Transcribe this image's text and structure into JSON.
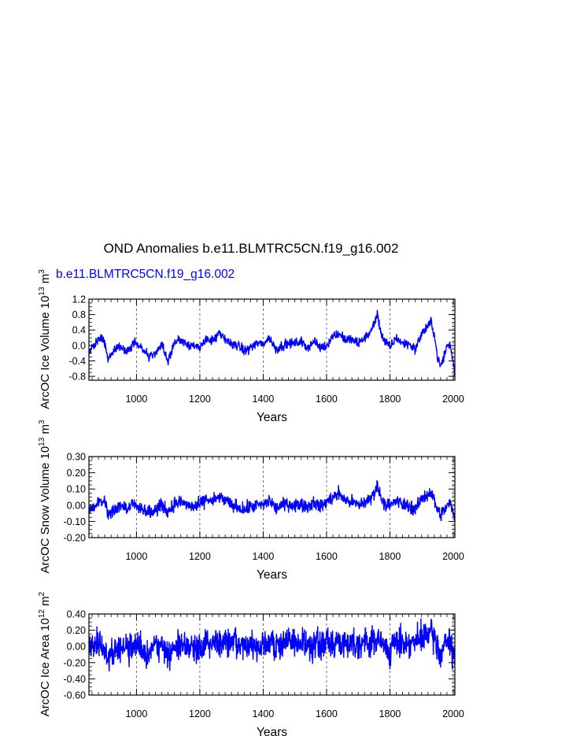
{
  "title": "OND Anomalies b.e11.BLMTRC5CN.f19_g16.002",
  "subtitle": "b.e11.BLMTRC5CN.f19_g16.002",
  "colors": {
    "series": "#0000ff",
    "axis": "#000000",
    "grid": "#555555",
    "background": "#ffffff"
  },
  "chart_data": [
    {
      "type": "line",
      "title": "",
      "ylabel": "ArcOC Ice Volume 10¹³ m³",
      "ylabel_parts": {
        "main": "ArcOC Ice Volume 10",
        "exp1": "13",
        "unit": " m",
        "exp2": "3"
      },
      "xlabel": "Years",
      "xlim": [
        850,
        2005
      ],
      "ylim": [
        -0.9,
        1.2
      ],
      "xticks": [
        1000,
        1200,
        1400,
        1600,
        1800,
        2000
      ],
      "xtick_labels": [
        "1000",
        "1200",
        "1400",
        "1600",
        "1800",
        "2000"
      ],
      "yticks": [
        -0.8,
        -0.4,
        0.0,
        0.4,
        0.8,
        1.2
      ],
      "ytick_labels": [
        "-0.8",
        "-0.4",
        "0.0",
        "0.4",
        "0.8",
        "1.2"
      ],
      "grid": "vertical dashed at major x ticks",
      "series": [
        {
          "name": "b.e11.BLMTRC5CN.f19_g16.002",
          "color": "#0000ff",
          "noise": 0.09,
          "x": [
            850,
            870,
            890,
            900,
            910,
            930,
            950,
            970,
            990,
            1000,
            1020,
            1040,
            1060,
            1080,
            1100,
            1120,
            1140,
            1160,
            1180,
            1200,
            1220,
            1240,
            1260,
            1280,
            1300,
            1320,
            1340,
            1360,
            1380,
            1400,
            1420,
            1440,
            1460,
            1480,
            1500,
            1520,
            1540,
            1560,
            1580,
            1600,
            1620,
            1640,
            1660,
            1680,
            1700,
            1720,
            1740,
            1760,
            1770,
            1780,
            1800,
            1820,
            1840,
            1860,
            1880,
            1900,
            1920,
            1930,
            1940,
            1950,
            1960,
            1970,
            1980,
            1990,
            2000,
            2005
          ],
          "y": [
            -0.2,
            0.05,
            0.2,
            0.1,
            -0.4,
            -0.1,
            0.0,
            -0.2,
            0.05,
            0.1,
            -0.1,
            -0.3,
            -0.2,
            0.0,
            -0.4,
            0.1,
            0.15,
            0.05,
            0.0,
            -0.1,
            0.2,
            0.1,
            0.3,
            0.15,
            0.05,
            0.0,
            -0.15,
            -0.05,
            0.05,
            0.05,
            0.2,
            -0.1,
            0.0,
            0.05,
            0.05,
            0.1,
            -0.05,
            0.1,
            -0.05,
            0.0,
            0.25,
            0.3,
            0.15,
            0.15,
            0.05,
            0.2,
            0.35,
            0.8,
            0.4,
            0.15,
            -0.05,
            0.2,
            0.05,
            0.05,
            -0.1,
            0.3,
            0.5,
            0.6,
            0.3,
            -0.3,
            -0.55,
            -0.3,
            0.0,
            0.0,
            -0.4,
            -0.8
          ]
        }
      ]
    },
    {
      "type": "line",
      "title": "",
      "ylabel": "ArcOC Snow Volume 10¹³ m³",
      "ylabel_parts": {
        "main": "ArcOC Snow Volume 10",
        "exp1": "13",
        "unit": " m",
        "exp2": "3"
      },
      "xlabel": "Years",
      "xlim": [
        850,
        2005
      ],
      "ylim": [
        -0.2,
        0.3
      ],
      "xticks": [
        1000,
        1200,
        1400,
        1600,
        1800,
        2000
      ],
      "xtick_labels": [
        "1000",
        "1200",
        "1400",
        "1600",
        "1800",
        "2000"
      ],
      "yticks": [
        -0.2,
        -0.1,
        0.0,
        0.1,
        0.2,
        0.3
      ],
      "ytick_labels": [
        "-0.20",
        "-0.10",
        "0.00",
        "0.10",
        "0.20",
        "0.30"
      ],
      "grid": "vertical dashed at major x ticks",
      "series": [
        {
          "name": "b.e11.BLMTRC5CN.f19_g16.002",
          "color": "#0000ff",
          "noise": 0.03,
          "x": [
            850,
            870,
            890,
            900,
            910,
            930,
            950,
            970,
            990,
            1000,
            1020,
            1040,
            1060,
            1080,
            1100,
            1120,
            1140,
            1160,
            1180,
            1200,
            1220,
            1240,
            1260,
            1280,
            1300,
            1320,
            1340,
            1360,
            1380,
            1400,
            1420,
            1440,
            1460,
            1480,
            1500,
            1520,
            1540,
            1560,
            1580,
            1600,
            1620,
            1640,
            1660,
            1680,
            1700,
            1720,
            1740,
            1760,
            1770,
            1780,
            1800,
            1820,
            1840,
            1860,
            1880,
            1900,
            1920,
            1930,
            1940,
            1950,
            1960,
            1970,
            1980,
            1990,
            2000,
            2005
          ],
          "y": [
            -0.03,
            0.0,
            0.03,
            0.02,
            -0.05,
            -0.03,
            0.0,
            -0.02,
            0.01,
            0.0,
            -0.02,
            -0.04,
            -0.03,
            0.0,
            -0.04,
            0.01,
            0.02,
            0.0,
            -0.01,
            0.0,
            0.04,
            0.02,
            0.05,
            0.03,
            0.0,
            -0.01,
            -0.03,
            -0.01,
            0.0,
            0.0,
            0.03,
            -0.02,
            0.0,
            0.01,
            0.0,
            0.01,
            -0.01,
            0.02,
            -0.01,
            0.02,
            0.05,
            0.07,
            0.03,
            0.02,
            0.0,
            0.02,
            0.04,
            0.12,
            0.06,
            0.02,
            -0.01,
            0.03,
            0.0,
            0.0,
            -0.03,
            0.04,
            0.07,
            0.08,
            0.03,
            -0.03,
            -0.06,
            -0.04,
            0.0,
            0.01,
            -0.05,
            -0.1
          ]
        }
      ]
    },
    {
      "type": "line",
      "title": "",
      "ylabel": "ArcOC Ice Area 10¹² m²",
      "ylabel_parts": {
        "main": "ArcOC Ice Area 10",
        "exp1": "12",
        "unit": " m",
        "exp2": "2"
      },
      "xlabel": "Years",
      "xlim": [
        850,
        2005
      ],
      "ylim": [
        -0.6,
        0.4
      ],
      "xticks": [
        1000,
        1200,
        1400,
        1600,
        1800,
        2000
      ],
      "xtick_labels": [
        "1000",
        "1200",
        "1400",
        "1600",
        "1800",
        "2000"
      ],
      "yticks": [
        -0.6,
        -0.4,
        -0.2,
        0.0,
        0.2,
        0.4
      ],
      "ytick_labels": [
        "-0.60",
        "-0.40",
        "-0.20",
        "0.00",
        "0.20",
        "0.40"
      ],
      "grid": "vertical dashed at major x ticks",
      "series": [
        {
          "name": "b.e11.BLMTRC5CN.f19_g16.002",
          "color": "#0000ff",
          "noise": 0.13,
          "x": [
            850,
            870,
            890,
            900,
            910,
            930,
            950,
            970,
            990,
            1000,
            1020,
            1040,
            1060,
            1080,
            1100,
            1120,
            1140,
            1160,
            1180,
            1200,
            1220,
            1240,
            1260,
            1280,
            1300,
            1320,
            1340,
            1360,
            1380,
            1400,
            1420,
            1440,
            1460,
            1480,
            1500,
            1520,
            1540,
            1560,
            1580,
            1600,
            1620,
            1640,
            1660,
            1680,
            1700,
            1720,
            1740,
            1760,
            1770,
            1780,
            1800,
            1820,
            1840,
            1860,
            1880,
            1900,
            1920,
            1930,
            1940,
            1950,
            1960,
            1970,
            1980,
            1990,
            2000,
            2005
          ],
          "y": [
            0.0,
            0.05,
            0.05,
            -0.05,
            -0.1,
            -0.05,
            0.0,
            -0.05,
            0.0,
            0.0,
            -0.05,
            -0.05,
            0.0,
            0.0,
            -0.1,
            0.0,
            0.0,
            0.0,
            0.0,
            0.0,
            0.05,
            0.05,
            0.05,
            0.05,
            0.05,
            0.0,
            0.0,
            0.0,
            0.0,
            0.0,
            0.05,
            0.0,
            0.0,
            0.05,
            0.05,
            0.05,
            0.0,
            0.05,
            0.0,
            0.05,
            0.05,
            0.05,
            0.05,
            0.05,
            0.05,
            0.05,
            0.05,
            0.1,
            0.05,
            0.0,
            -0.05,
            0.05,
            0.05,
            0.05,
            0.05,
            0.1,
            0.15,
            0.15,
            0.1,
            0.0,
            -0.1,
            0.0,
            0.05,
            0.05,
            -0.1,
            -0.2
          ]
        }
      ]
    }
  ]
}
